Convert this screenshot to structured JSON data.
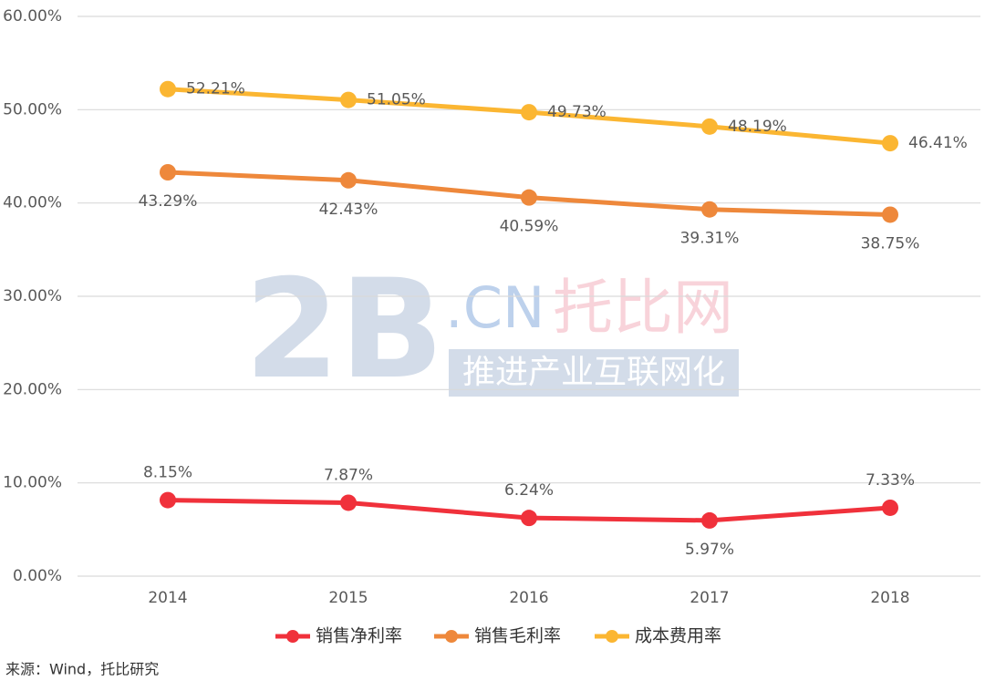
{
  "chart_data": {
    "type": "line",
    "categories": [
      "2014",
      "2015",
      "2016",
      "2017",
      "2018"
    ],
    "series": [
      {
        "name": "销售净利率",
        "color": "#f0313b",
        "values": [
          8.15,
          7.87,
          6.24,
          5.97,
          7.33
        ],
        "value_labels": [
          "8.15%",
          "7.87%",
          "6.24%",
          "5.97%",
          "7.33%"
        ]
      },
      {
        "name": "销售毛利率",
        "color": "#ee883b",
        "values": [
          43.29,
          42.43,
          40.59,
          39.31,
          38.75
        ],
        "value_labels": [
          "43.29%",
          "42.43%",
          "40.59%",
          "39.31%",
          "38.75%"
        ]
      },
      {
        "name": "成本费用率",
        "color": "#fbb632",
        "values": [
          52.21,
          51.05,
          49.73,
          48.19,
          46.41
        ],
        "value_labels": [
          "52.21%",
          "51.05%",
          "49.73%",
          "48.19%",
          "46.41%"
        ]
      }
    ],
    "ylim": [
      0,
      60
    ],
    "yticks": [
      {
        "value": 0,
        "label": "0.00%"
      },
      {
        "value": 10,
        "label": "10.00%"
      },
      {
        "value": 20,
        "label": "20.00%"
      },
      {
        "value": 30,
        "label": "30.00%"
      },
      {
        "value": 40,
        "label": "40.00%"
      },
      {
        "value": 50,
        "label": "50.00%"
      },
      {
        "value": 60,
        "label": "60.00%"
      }
    ],
    "grid": true,
    "legend": "bottom",
    "source": "来源：Wind，托比研究",
    "watermark": {
      "logo": "2B",
      "domain": ".CN",
      "brand": "托比网",
      "slogan": "推进产业互联网化"
    }
  }
}
